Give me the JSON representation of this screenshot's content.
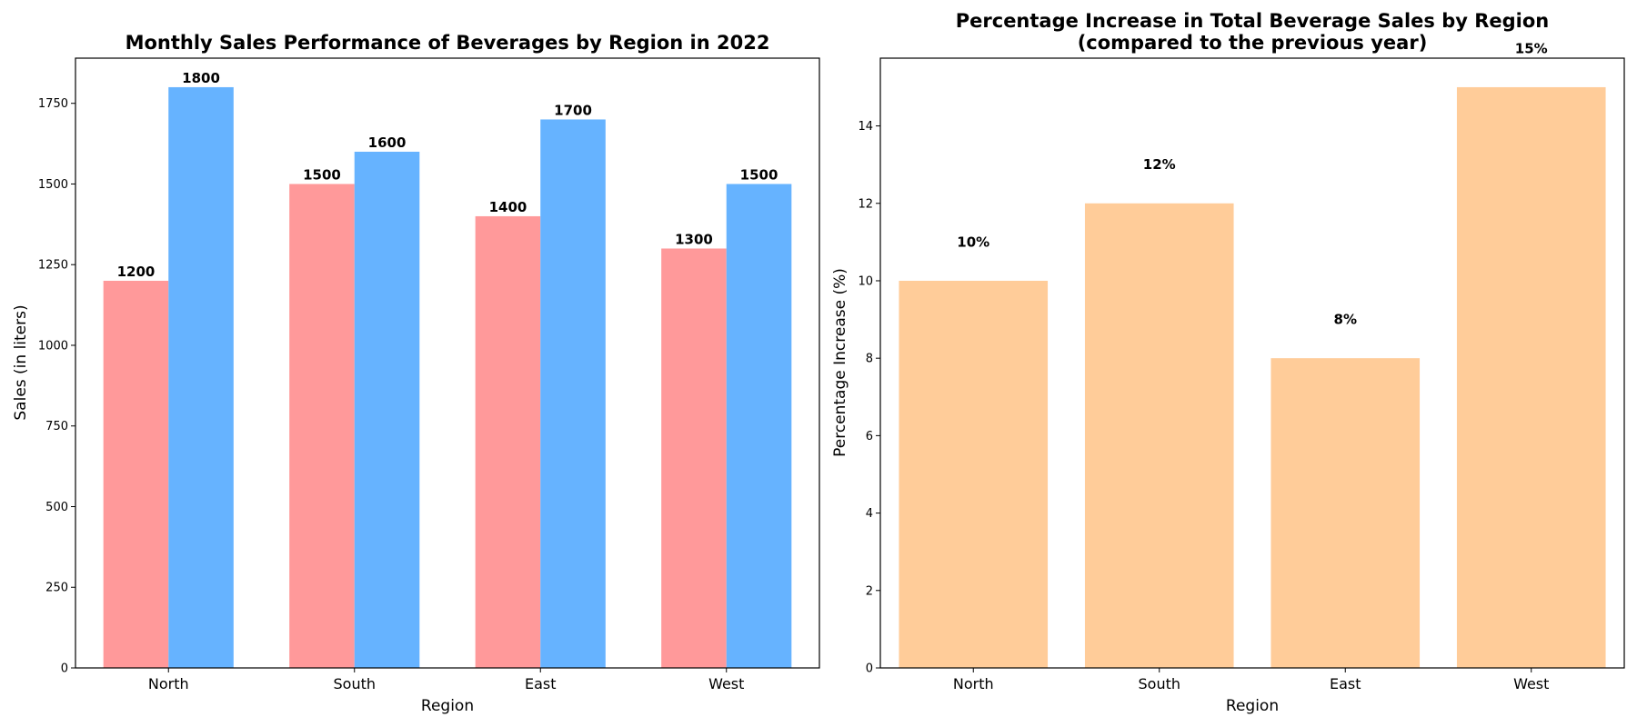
{
  "chart_data": [
    {
      "type": "bar",
      "title": "Monthly Sales Performance of Beverages by Region in 2022",
      "xlabel": "Region",
      "ylabel": "Sales (in liters)",
      "categories": [
        "North",
        "South",
        "East",
        "West"
      ],
      "series": [
        {
          "values": [
            1200,
            1500,
            1400,
            1300
          ],
          "color": "#ff999a"
        },
        {
          "values": [
            1800,
            1600,
            1700,
            1500
          ],
          "color": "#66b3ff"
        }
      ],
      "data_labels": [
        [
          "1200",
          "1500",
          "1400",
          "1300"
        ],
        [
          "1800",
          "1600",
          "1700",
          "1500"
        ]
      ],
      "ylim": [
        0,
        1890
      ],
      "yticks": [
        0,
        250,
        500,
        750,
        1000,
        1250,
        1500,
        1750
      ],
      "grid": false,
      "legend": "none"
    },
    {
      "type": "bar",
      "title": "Percentage Increase in Total Beverage Sales by Region",
      "subtitle": "(compared to the previous year)",
      "xlabel": "Region",
      "ylabel": "Percentage Increase (%)",
      "categories": [
        "North",
        "South",
        "East",
        "West"
      ],
      "series": [
        {
          "values": [
            10,
            12,
            8,
            15
          ],
          "color": "#ffcc99"
        }
      ],
      "data_labels": [
        [
          "10%",
          "12%",
          "8%",
          "15%"
        ]
      ],
      "ylim": [
        0,
        15.75
      ],
      "yticks": [
        0,
        2,
        4,
        6,
        8,
        10,
        12,
        14
      ],
      "grid": false,
      "legend": "none"
    }
  ]
}
